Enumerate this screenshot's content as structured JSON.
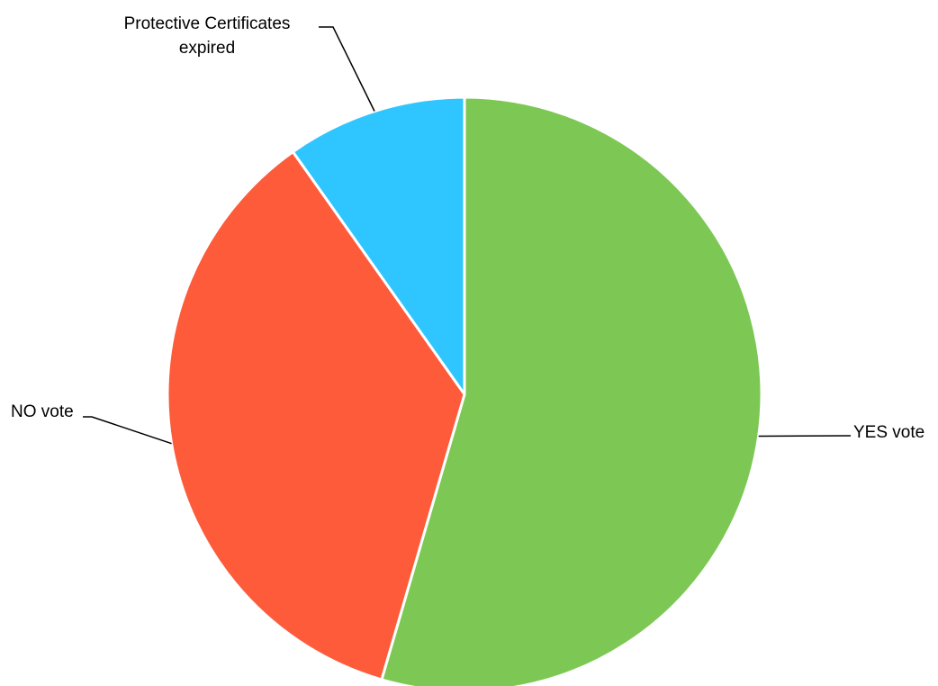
{
  "chart_data": {
    "type": "pie",
    "title": "",
    "categories": [
      "YES vote",
      "NO vote",
      "Protective Certificates expired"
    ],
    "values": [
      54.5,
      35.7,
      9.8
    ],
    "label_lines": [
      [
        "YES vote"
      ],
      [
        "NO vote"
      ],
      [
        "Protective Certificates",
        "expired"
      ]
    ],
    "colors": [
      "#7dc855",
      "#fd5b3a",
      "#2fc6ff"
    ],
    "start": "12 o'clock",
    "direction": "clockwise",
    "legend": "none",
    "data_labels": "category name with leader lines"
  }
}
